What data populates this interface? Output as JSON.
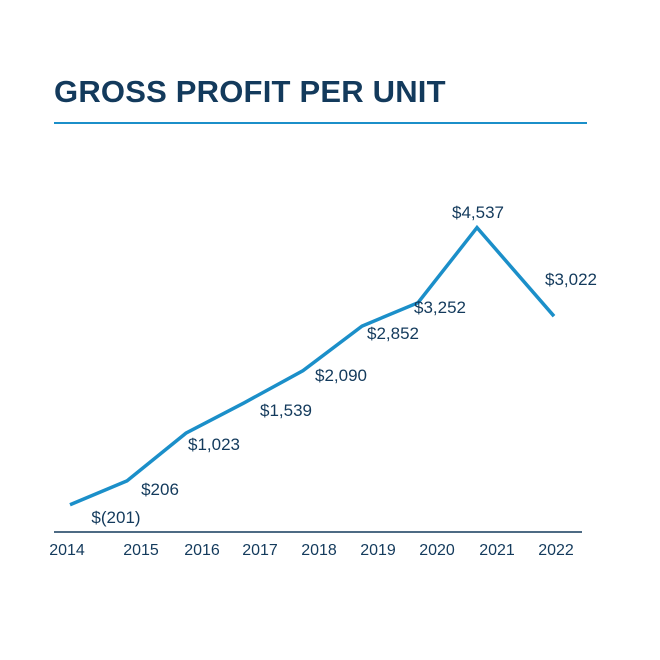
{
  "title": "GROSS PROFIT PER UNIT",
  "colors": {
    "title": "#133a5c",
    "line": "#1b8fc9",
    "rule": "#1b8fc9",
    "axis": "#133a5c"
  },
  "chart_data": {
    "type": "line",
    "title": "GROSS PROFIT PER UNIT",
    "xlabel": "",
    "ylabel": "",
    "categories": [
      "2014",
      "2015",
      "2016",
      "2017",
      "2018",
      "2019",
      "2020",
      "2021",
      "2022"
    ],
    "series": [
      {
        "values": [
          -201,
          206,
          1023,
          1539,
          2090,
          2852,
          3252,
          4537,
          3022
        ],
        "labels": [
          "$(201)",
          "$206",
          "$1,023",
          "$1,539",
          "$2,090",
          "$2,852",
          "$3,252",
          "$4,537",
          "$3,022"
        ]
      }
    ],
    "ylim": [
      -500,
      5000
    ],
    "grid": false,
    "legend": "none"
  }
}
